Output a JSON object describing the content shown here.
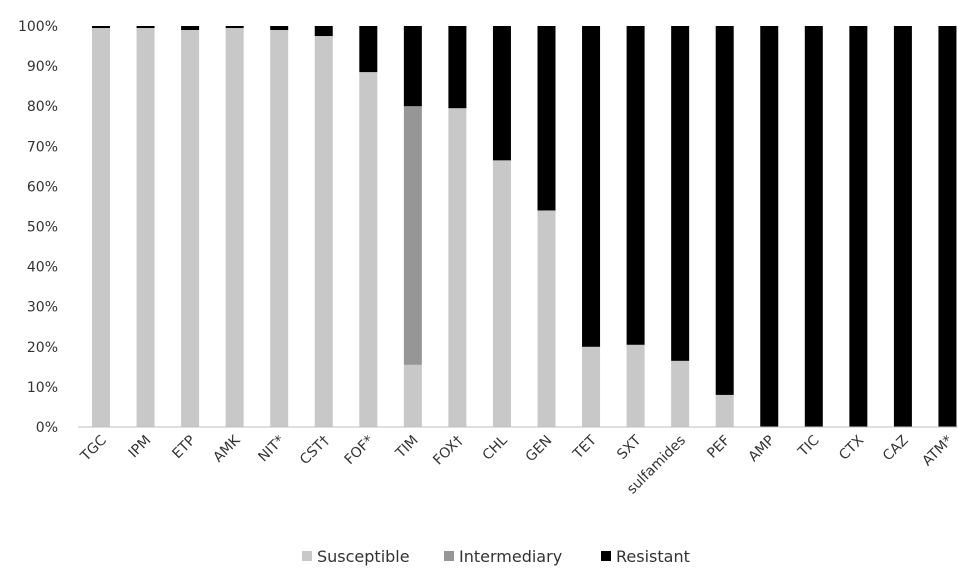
{
  "chart_data": {
    "type": "bar",
    "stacked": true,
    "categories": [
      "TGC",
      "IPM",
      "ETP",
      "AMK",
      "NIT*",
      "CST†",
      "FOF*",
      "TIM",
      "FOX†",
      "CHL",
      "GEN",
      "TET",
      "SXT",
      "sulfamides",
      "PEF",
      "AMP",
      "TIC",
      "CTX",
      "CAZ",
      "ATM*"
    ],
    "series": [
      {
        "name": "Susceptible",
        "color": "#c8c8c8",
        "values": [
          99.5,
          99.5,
          99,
          99.5,
          99,
          97.5,
          88.5,
          15.5,
          79.5,
          66.5,
          54,
          20,
          20.5,
          16.5,
          8,
          0,
          0,
          0,
          0,
          0
        ]
      },
      {
        "name": "Intermediary",
        "color": "#969696",
        "values": [
          0,
          0,
          0,
          0,
          0,
          0,
          0,
          64.5,
          0,
          0,
          0,
          0,
          0,
          0,
          0,
          0,
          0,
          0,
          0,
          0
        ]
      },
      {
        "name": "Resistant",
        "color": "#000000",
        "values": [
          0.5,
          0.5,
          1,
          0.5,
          1,
          2.5,
          11.5,
          20,
          20.5,
          33.5,
          46,
          80,
          79.5,
          83.5,
          92,
          100,
          100,
          100,
          100,
          100
        ]
      }
    ],
    "yticks": [
      "0%",
      "10%",
      "20%",
      "30%",
      "40%",
      "50%",
      "60%",
      "70%",
      "80%",
      "90%",
      "100%"
    ],
    "ylim": [
      0,
      100
    ],
    "grid": false,
    "legend": "bottom"
  }
}
